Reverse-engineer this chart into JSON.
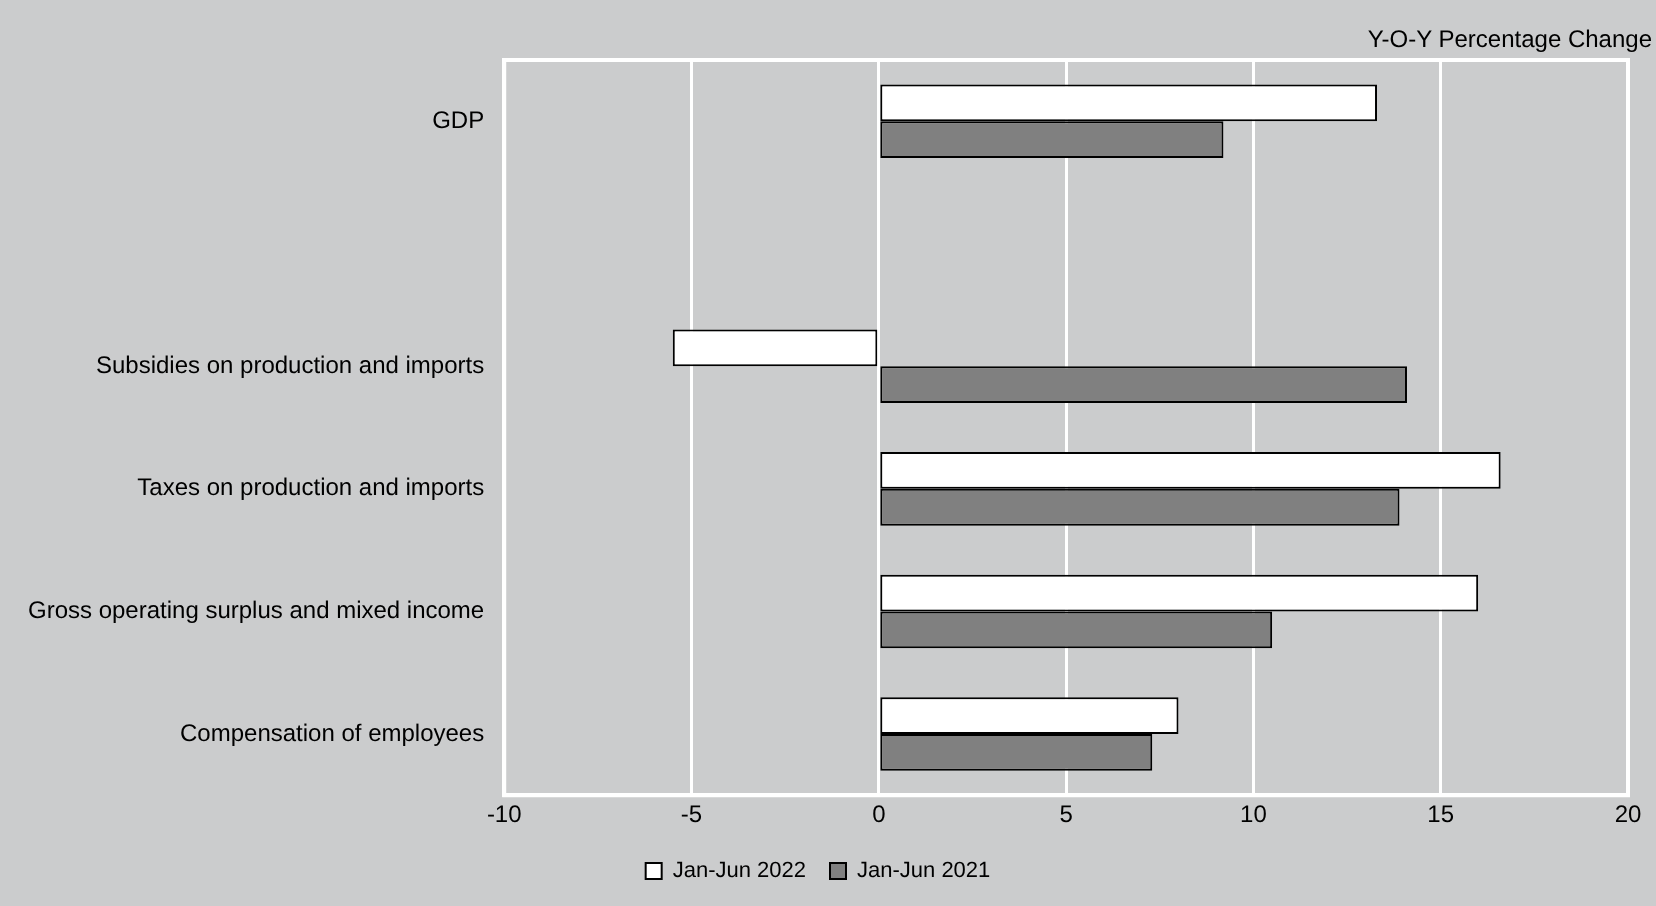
{
  "chart_data": {
    "type": "bar",
    "orientation": "horizontal",
    "xlabel": "Y-O-Y Percentage Change",
    "categories": [
      "GDP",
      null,
      "Subsidies on production and imports",
      "Taxes on production and imports",
      "Gross operating surplus and mixed income",
      "Compensation of employees"
    ],
    "series": [
      {
        "name": "Jan-Jun 2022",
        "color": "#ffffff",
        "values": [
          13.3,
          null,
          -5.5,
          16.6,
          16.0,
          8.0
        ]
      },
      {
        "name": "Jan-Jun 2021",
        "color": "#808080",
        "values": [
          9.2,
          null,
          14.1,
          13.9,
          10.5,
          7.3
        ]
      }
    ],
    "xlim": [
      -10,
      20
    ],
    "xticks": [
      -10,
      -5,
      0,
      5,
      10,
      15,
      20
    ],
    "grid": "x",
    "legend": "bottom"
  }
}
